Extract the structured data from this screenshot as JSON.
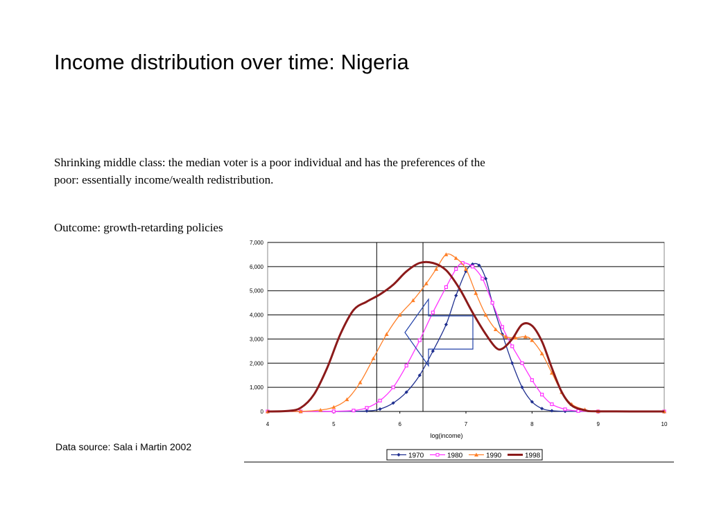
{
  "slide": {
    "title": "Income distribution over time: Nigeria",
    "text1": "Shrinking middle class: the median voter is a poor individual and has the preferences of the poor: essentially income/wealth redistribution.",
    "text2": "Outcome: growth-retarding policies",
    "source": "Data source: Sala i Martin 2002"
  },
  "chart_data": {
    "type": "line",
    "title": "",
    "xlabel": "log(income)",
    "ylabel": "",
    "xlim": [
      4,
      10
    ],
    "ylim": [
      0,
      7000
    ],
    "x_ticks": [
      "4",
      "5",
      "6",
      "7",
      "8",
      "9",
      "10"
    ],
    "y_ticks": [
      "0",
      "1,000",
      "2,000",
      "3,000",
      "4,000",
      "5,000",
      "6,000",
      "7,000"
    ],
    "grid": "horizontal",
    "legend_position": "bottom",
    "vertical_reference_lines_x": [
      5.65,
      6.35
    ],
    "annotation": "arrow pointing left",
    "series": [
      {
        "name": "1970",
        "color": "#1f2f8f",
        "marker": "diamond",
        "points": [
          [
            4,
            0
          ],
          [
            4.5,
            0
          ],
          [
            5,
            0
          ],
          [
            5.5,
            20
          ],
          [
            5.7,
            100
          ],
          [
            5.9,
            350
          ],
          [
            6.1,
            800
          ],
          [
            6.3,
            1500
          ],
          [
            6.5,
            2500
          ],
          [
            6.7,
            3600
          ],
          [
            6.85,
            4800
          ],
          [
            7.0,
            5800
          ],
          [
            7.1,
            6100
          ],
          [
            7.2,
            6050
          ],
          [
            7.3,
            5500
          ],
          [
            7.4,
            4500
          ],
          [
            7.55,
            3200
          ],
          [
            7.7,
            2000
          ],
          [
            7.85,
            1000
          ],
          [
            8.0,
            400
          ],
          [
            8.15,
            120
          ],
          [
            8.3,
            30
          ],
          [
            8.5,
            5
          ],
          [
            9,
            0
          ],
          [
            10,
            0
          ]
        ]
      },
      {
        "name": "1980",
        "color": "#ff33ff",
        "marker": "square",
        "points": [
          [
            4,
            0
          ],
          [
            4.5,
            0
          ],
          [
            5,
            5
          ],
          [
            5.3,
            40
          ],
          [
            5.5,
            150
          ],
          [
            5.7,
            450
          ],
          [
            5.9,
            1000
          ],
          [
            6.1,
            1900
          ],
          [
            6.3,
            2950
          ],
          [
            6.5,
            4100
          ],
          [
            6.7,
            5150
          ],
          [
            6.85,
            5900
          ],
          [
            6.95,
            6150
          ],
          [
            7.1,
            6000
          ],
          [
            7.25,
            5500
          ],
          [
            7.4,
            4500
          ],
          [
            7.55,
            3500
          ],
          [
            7.7,
            2700
          ],
          [
            7.85,
            2000
          ],
          [
            8.0,
            1300
          ],
          [
            8.15,
            700
          ],
          [
            8.3,
            300
          ],
          [
            8.5,
            90
          ],
          [
            8.7,
            20
          ],
          [
            9,
            0
          ],
          [
            10,
            0
          ]
        ]
      },
      {
        "name": "1990",
        "color": "#ff7f27",
        "marker": "triangle",
        "points": [
          [
            4,
            0
          ],
          [
            4.5,
            5
          ],
          [
            4.8,
            60
          ],
          [
            5.0,
            180
          ],
          [
            5.2,
            500
          ],
          [
            5.4,
            1200
          ],
          [
            5.6,
            2200
          ],
          [
            5.8,
            3200
          ],
          [
            6.0,
            4000
          ],
          [
            6.2,
            4600
          ],
          [
            6.4,
            5300
          ],
          [
            6.55,
            5900
          ],
          [
            6.7,
            6500
          ],
          [
            6.85,
            6350
          ],
          [
            7.0,
            5900
          ],
          [
            7.15,
            4900
          ],
          [
            7.3,
            4000
          ],
          [
            7.45,
            3400
          ],
          [
            7.6,
            3100
          ],
          [
            7.75,
            3050
          ],
          [
            7.9,
            3100
          ],
          [
            8.0,
            2950
          ],
          [
            8.15,
            2400
          ],
          [
            8.3,
            1600
          ],
          [
            8.45,
            800
          ],
          [
            8.6,
            300
          ],
          [
            8.8,
            80
          ],
          [
            9.0,
            10
          ],
          [
            10,
            0
          ]
        ]
      },
      {
        "name": "1998",
        "color": "#8b1a1a",
        "marker": "none",
        "points": [
          [
            4,
            0
          ],
          [
            4.3,
            20
          ],
          [
            4.5,
            150
          ],
          [
            4.7,
            700
          ],
          [
            4.9,
            1800
          ],
          [
            5.1,
            3200
          ],
          [
            5.3,
            4200
          ],
          [
            5.5,
            4550
          ],
          [
            5.7,
            4850
          ],
          [
            5.9,
            5250
          ],
          [
            6.1,
            5800
          ],
          [
            6.3,
            6150
          ],
          [
            6.5,
            6150
          ],
          [
            6.7,
            5850
          ],
          [
            6.9,
            5100
          ],
          [
            7.1,
            4100
          ],
          [
            7.3,
            3200
          ],
          [
            7.45,
            2650
          ],
          [
            7.55,
            2600
          ],
          [
            7.7,
            3000
          ],
          [
            7.85,
            3600
          ],
          [
            8.0,
            3550
          ],
          [
            8.15,
            2900
          ],
          [
            8.3,
            1800
          ],
          [
            8.45,
            800
          ],
          [
            8.6,
            250
          ],
          [
            8.8,
            50
          ],
          [
            9.0,
            5
          ],
          [
            10,
            0
          ]
        ]
      }
    ]
  }
}
